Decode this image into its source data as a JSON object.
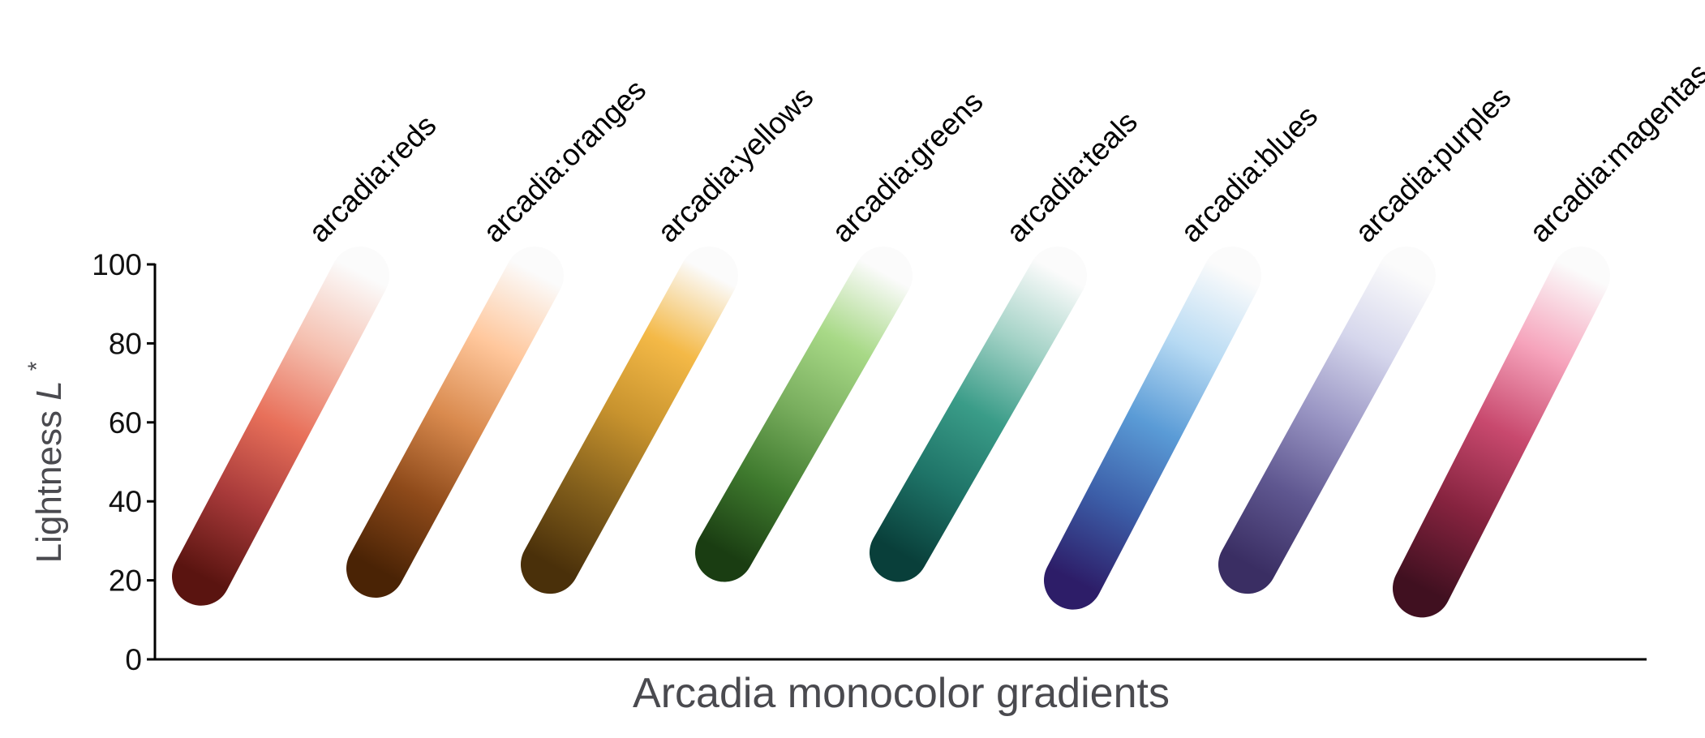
{
  "chart_data": {
    "type": "line",
    "title": "",
    "xlabel": "Arcadia monocolor gradients",
    "ylabel_text": "Lightness ",
    "ylabel_symbol": "L",
    "ylabel_superscript": "*",
    "ylim": [
      0,
      100
    ],
    "yticks": [
      "0",
      "20",
      "40",
      "60",
      "80",
      "100"
    ],
    "grid": false,
    "categories": [
      "arcadia:reds",
      "arcadia:oranges",
      "arcadia:yellows",
      "arcadia:greens",
      "arcadia:teals",
      "arcadia:blues",
      "arcadia:purples",
      "arcadia:magentas"
    ],
    "series": [
      {
        "name": "arcadia:reds",
        "min_lightness": 21,
        "max_lightness": 100,
        "colors": [
          "#5a1410",
          "#a83a3a",
          "#e8705a",
          "#f5c0b0",
          "#fbfbfb"
        ]
      },
      {
        "name": "arcadia:oranges",
        "min_lightness": 23,
        "max_lightness": 100,
        "colors": [
          "#4a2305",
          "#8e4a1a",
          "#d98a4e",
          "#ffc79c",
          "#fbfbfb"
        ]
      },
      {
        "name": "arcadia:yellows",
        "min_lightness": 24,
        "max_lightness": 100,
        "colors": [
          "#4a300a",
          "#84601c",
          "#c8932e",
          "#f4b947",
          "#fbfbfb"
        ]
      },
      {
        "name": "arcadia:greens",
        "min_lightness": 27,
        "max_lightness": 100,
        "colors": [
          "#1a3d12",
          "#3f7a2e",
          "#79ae5e",
          "#a8d987",
          "#fbfbfb"
        ]
      },
      {
        "name": "arcadia:teals",
        "min_lightness": 27,
        "max_lightness": 100,
        "colors": [
          "#093f3a",
          "#1e7367",
          "#3a9c88",
          "#a3d2c6",
          "#fbfbfb"
        ]
      },
      {
        "name": "arcadia:blues",
        "min_lightness": 20,
        "max_lightness": 100,
        "colors": [
          "#2d1d68",
          "#3c5ea8",
          "#5a9bd6",
          "#b7daf3",
          "#fbfbfb"
        ]
      },
      {
        "name": "arcadia:purples",
        "min_lightness": 24,
        "max_lightness": 100,
        "colors": [
          "#3a2e63",
          "#5f5790",
          "#9a96c4",
          "#d5d6ec",
          "#fbfbfb"
        ]
      },
      {
        "name": "arcadia:magentas",
        "min_lightness": 18,
        "max_lightness": 100,
        "colors": [
          "#401020",
          "#86233f",
          "#c8496e",
          "#f6a4bc",
          "#fbfbfb"
        ]
      }
    ]
  }
}
